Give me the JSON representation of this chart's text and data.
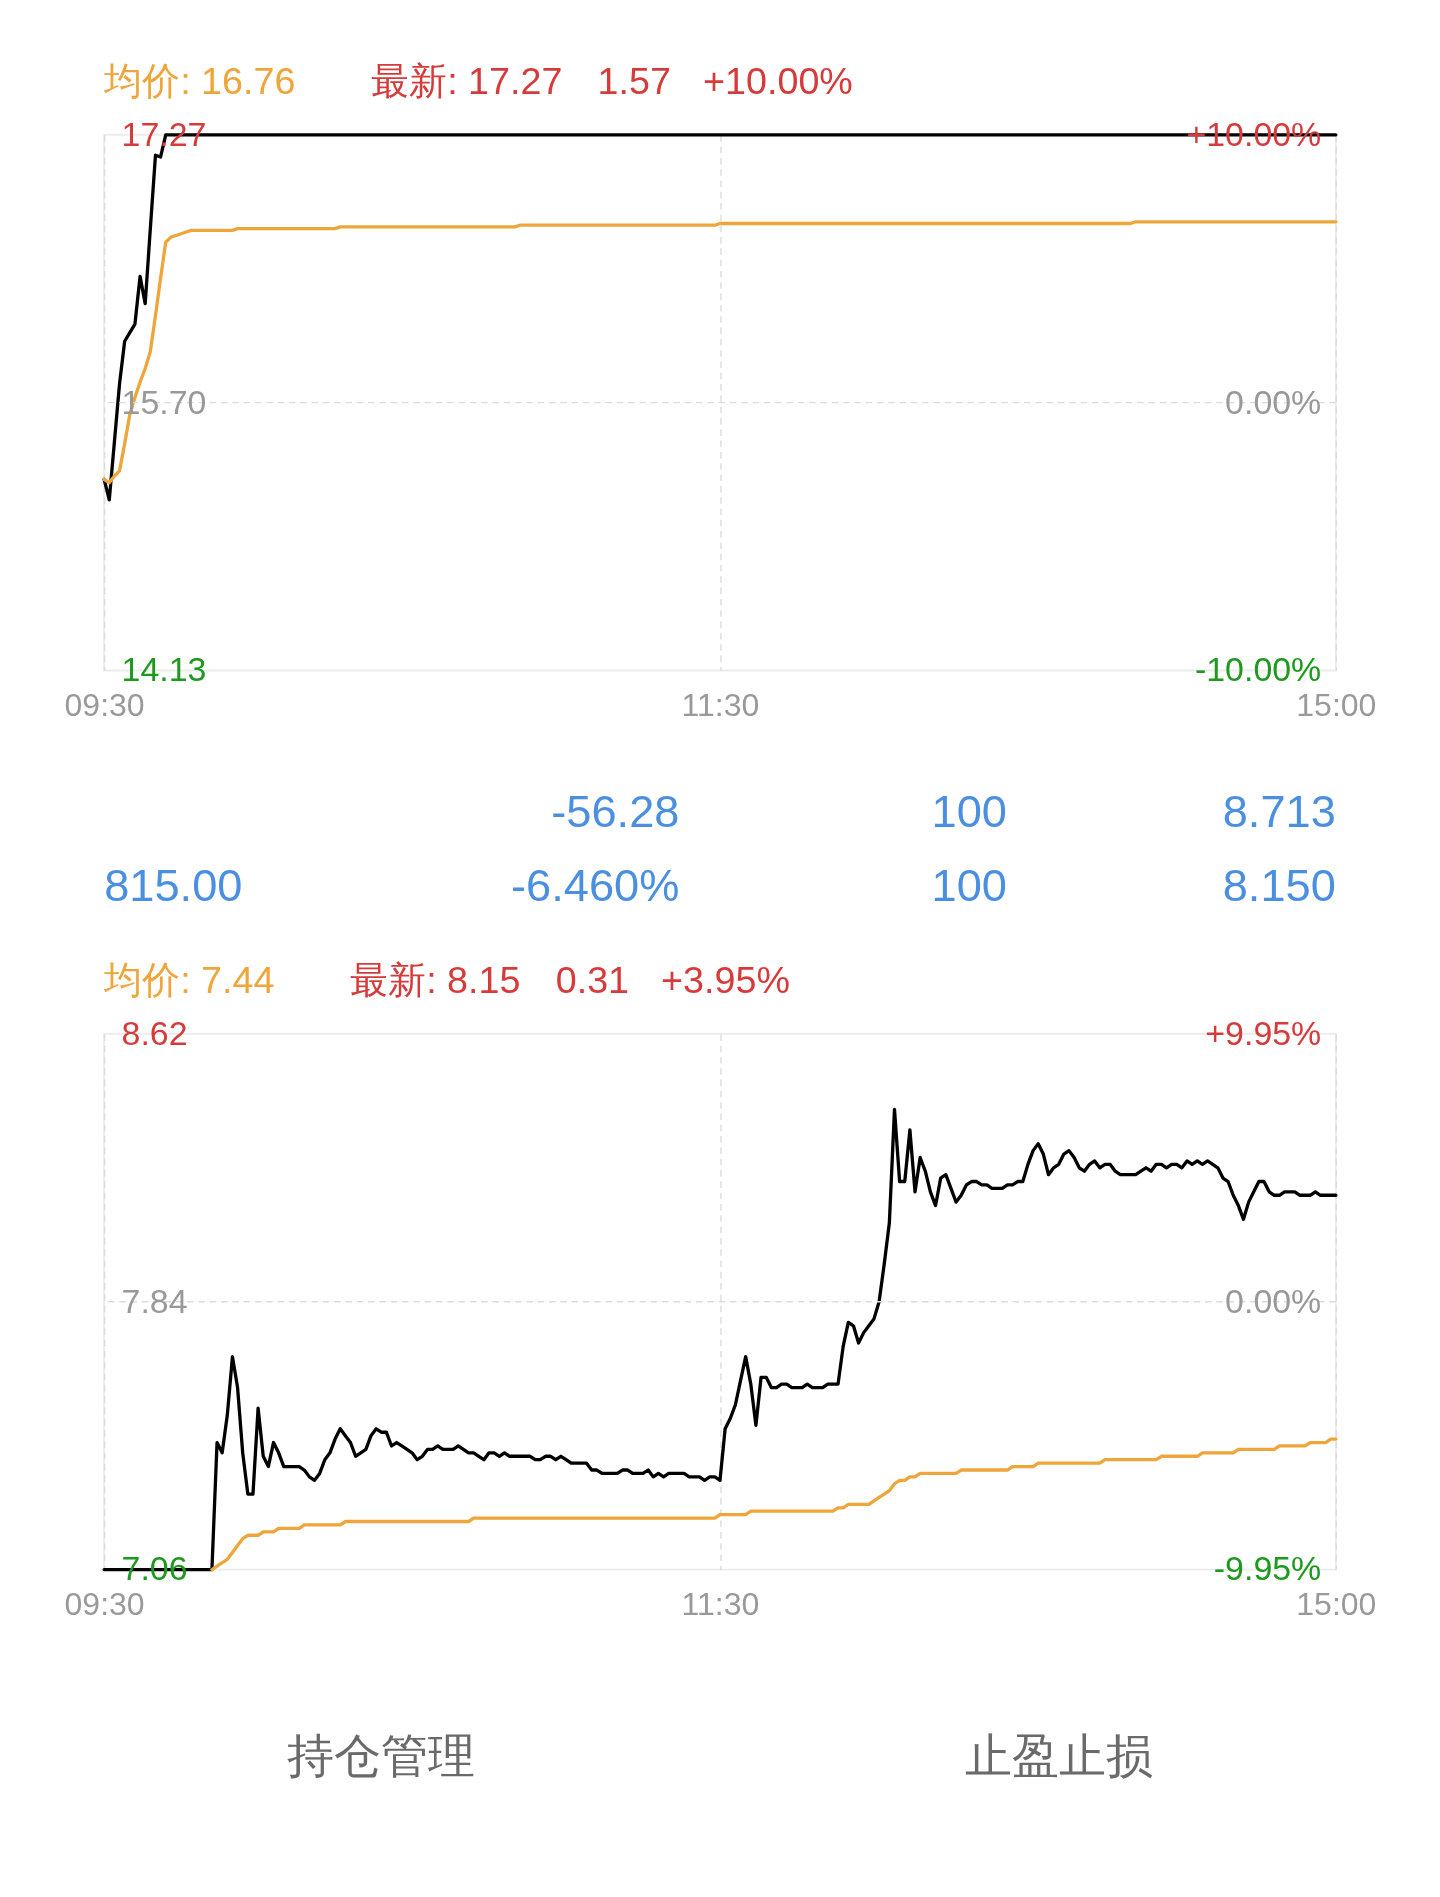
{
  "chart_data": [
    {
      "type": "line",
      "annotations": [
        "均价: 16.76",
        "最新: 17.27",
        "1.57",
        "+10.00%"
      ],
      "categories": [
        "09:30",
        null,
        null,
        null,
        null,
        null,
        null,
        null,
        null,
        null,
        null,
        null,
        null,
        null,
        null,
        null,
        null,
        null,
        null,
        null,
        null,
        null,
        null,
        null,
        null,
        null,
        null,
        null,
        null,
        null,
        null,
        null,
        null,
        null,
        null,
        null,
        null,
        null,
        null,
        null,
        null,
        null,
        null,
        null,
        null,
        null,
        null,
        null,
        null,
        null,
        null,
        null,
        null,
        null,
        null,
        null,
        null,
        null,
        null,
        null,
        null,
        null,
        null,
        null,
        null,
        null,
        null,
        null,
        null,
        null,
        null,
        null,
        null,
        null,
        null,
        null,
        null,
        null,
        null,
        null,
        null,
        null,
        null,
        null,
        null,
        null,
        null,
        null,
        null,
        null,
        null,
        null,
        null,
        null,
        null,
        null,
        null,
        null,
        null,
        null,
        null,
        null,
        null,
        null,
        null,
        null,
        null,
        null,
        null,
        null,
        null,
        null,
        null,
        null,
        null,
        null,
        null,
        null,
        null,
        null,
        "11:30",
        null,
        null,
        null,
        null,
        null,
        null,
        null,
        null,
        null,
        null,
        null,
        null,
        null,
        null,
        null,
        null,
        null,
        null,
        null,
        null,
        null,
        null,
        null,
        null,
        null,
        null,
        null,
        null,
        null,
        null,
        null,
        null,
        null,
        null,
        null,
        null,
        null,
        null,
        null,
        null,
        null,
        null,
        null,
        null,
        null,
        null,
        null,
        null,
        null,
        null,
        null,
        null,
        null,
        null,
        null,
        null,
        null,
        null,
        null,
        null,
        null,
        null,
        null,
        null,
        null,
        null,
        null,
        null,
        null,
        null,
        null,
        null,
        null,
        null,
        null,
        null,
        null,
        null,
        null,
        null,
        null,
        null,
        null,
        null,
        null,
        null,
        null,
        null,
        null,
        null,
        null,
        null,
        null,
        null,
        null,
        null,
        null,
        null,
        null,
        null,
        null,
        null,
        null,
        null,
        null,
        null,
        null,
        null,
        null,
        null,
        null,
        null,
        null,
        null,
        null,
        null,
        null,
        null,
        null,
        "15:00"
      ],
      "ylim": [
        14.13,
        17.27
      ],
      "yticks": [
        14.13,
        {
          "value": 15.7,
          "label": "15.70"
        },
        17.27
      ],
      "y2lim": [
        -10,
        10
      ],
      "y2ticks": [
        {
          "value": -10,
          "label": "-10.00%"
        },
        {
          "value": 0,
          "label": "0.00%"
        },
        {
          "value": 10,
          "label": "+10.00%"
        }
      ],
      "grid": "x",
      "ref_lines": [
        {
          "axis": "y2",
          "value": 0,
          "color": "#dcdcdc",
          "line_style": "dashed"
        }
      ],
      "series": [
        {
          "color": "#000000",
          "values": [
            15.25,
            15.13,
            15.47,
            15.81,
            16.06,
            16.11,
            16.16,
            16.44,
            16.28,
            16.72,
            17.15,
            17.14,
            17.27,
            17.27,
            17.27,
            17.27,
            17.27,
            17.27,
            17.27,
            17.27,
            17.27,
            17.27,
            17.27,
            17.27,
            17.27,
            17.27,
            17.27,
            17.27,
            17.27,
            17.27,
            17.27,
            17.27,
            17.27,
            17.27,
            17.27,
            17.27,
            17.27,
            17.27,
            17.27,
            17.27,
            17.27,
            17.27,
            17.27,
            17.27,
            17.27,
            17.27,
            17.27,
            17.27,
            17.27,
            17.27,
            17.27,
            17.27,
            17.27,
            17.27,
            17.27,
            17.27,
            17.27,
            17.27,
            17.27,
            17.27,
            17.27,
            17.27,
            17.27,
            17.27,
            17.27,
            17.27,
            17.27,
            17.27,
            17.27,
            17.27,
            17.27,
            17.27,
            17.27,
            17.27,
            17.27,
            17.27,
            17.27,
            17.27,
            17.27,
            17.27,
            17.27,
            17.27,
            17.27,
            17.27,
            17.27,
            17.27,
            17.27,
            17.27,
            17.27,
            17.27,
            17.27,
            17.27,
            17.27,
            17.27,
            17.27,
            17.27,
            17.27,
            17.27,
            17.27,
            17.27,
            17.27,
            17.27,
            17.27,
            17.27,
            17.27,
            17.27,
            17.27,
            17.27,
            17.27,
            17.27,
            17.27,
            17.27,
            17.27,
            17.27,
            17.27,
            17.27,
            17.27,
            17.27,
            17.27,
            17.27,
            17.27,
            17.27,
            17.27,
            17.27,
            17.27,
            17.27,
            17.27,
            17.27,
            17.27,
            17.27,
            17.27,
            17.27,
            17.27,
            17.27,
            17.27,
            17.27,
            17.27,
            17.27,
            17.27,
            17.27,
            17.27,
            17.27,
            17.27,
            17.27,
            17.27,
            17.27,
            17.27,
            17.27,
            17.27,
            17.27,
            17.27,
            17.27,
            17.27,
            17.27,
            17.27,
            17.27,
            17.27,
            17.27,
            17.27,
            17.27,
            17.27,
            17.27,
            17.27,
            17.27,
            17.27,
            17.27,
            17.27,
            17.27,
            17.27,
            17.27,
            17.27,
            17.27,
            17.27,
            17.27,
            17.27,
            17.27,
            17.27,
            17.27,
            17.27,
            17.27,
            17.27,
            17.27,
            17.27,
            17.27,
            17.27,
            17.27,
            17.27,
            17.27,
            17.27,
            17.27,
            17.27,
            17.27,
            17.27,
            17.27,
            17.27,
            17.27,
            17.27,
            17.27,
            17.27,
            17.27,
            17.27,
            17.27,
            17.27,
            17.27,
            17.27,
            17.27,
            17.27,
            17.27,
            17.27,
            17.27,
            17.27,
            17.27,
            17.27,
            17.27,
            17.27,
            17.27,
            17.27,
            17.27,
            17.27,
            17.27,
            17.27,
            17.27,
            17.27,
            17.27,
            17.27,
            17.27,
            17.27,
            17.27,
            17.27,
            17.27,
            17.27,
            17.27,
            17.27,
            17.27,
            17.27,
            17.27,
            17.27,
            17.27,
            17.27,
            17.27,
            17.27
          ]
        },
        {
          "color": "#eea53a",
          "values": [
            15.25,
            15.23,
            15.27,
            15.3,
            15.46,
            15.63,
            15.73,
            15.82,
            15.9,
            16.0,
            16.21,
            16.43,
            16.64,
            16.67,
            16.68,
            16.69,
            16.7,
            16.71,
            16.71,
            16.71,
            16.71,
            16.71,
            16.71,
            16.71,
            16.71,
            16.71,
            16.72,
            16.72,
            16.72,
            16.72,
            16.72,
            16.72,
            16.72,
            16.72,
            16.72,
            16.72,
            16.72,
            16.72,
            16.72,
            16.72,
            16.72,
            16.72,
            16.72,
            16.72,
            16.72,
            16.72,
            16.73,
            16.73,
            16.73,
            16.73,
            16.73,
            16.73,
            16.73,
            16.73,
            16.73,
            16.73,
            16.73,
            16.73,
            16.73,
            16.73,
            16.73,
            16.73,
            16.73,
            16.73,
            16.73,
            16.73,
            16.73,
            16.73,
            16.73,
            16.73,
            16.73,
            16.73,
            16.73,
            16.73,
            16.73,
            16.73,
            16.73,
            16.73,
            16.73,
            16.73,
            16.73,
            16.74,
            16.74,
            16.74,
            16.74,
            16.74,
            16.74,
            16.74,
            16.74,
            16.74,
            16.74,
            16.74,
            16.74,
            16.74,
            16.74,
            16.74,
            16.74,
            16.74,
            16.74,
            16.74,
            16.74,
            16.74,
            16.74,
            16.74,
            16.74,
            16.74,
            16.74,
            16.74,
            16.74,
            16.74,
            16.74,
            16.74,
            16.74,
            16.74,
            16.74,
            16.74,
            16.74,
            16.74,
            16.74,
            16.74,
            16.75,
            16.75,
            16.75,
            16.75,
            16.75,
            16.75,
            16.75,
            16.75,
            16.75,
            16.75,
            16.75,
            16.75,
            16.75,
            16.75,
            16.75,
            16.75,
            16.75,
            16.75,
            16.75,
            16.75,
            16.75,
            16.75,
            16.75,
            16.75,
            16.75,
            16.75,
            16.75,
            16.75,
            16.75,
            16.75,
            16.75,
            16.75,
            16.75,
            16.75,
            16.75,
            16.75,
            16.75,
            16.75,
            16.75,
            16.75,
            16.75,
            16.75,
            16.75,
            16.75,
            16.75,
            16.75,
            16.75,
            16.75,
            16.75,
            16.75,
            16.75,
            16.75,
            16.75,
            16.75,
            16.75,
            16.75,
            16.75,
            16.75,
            16.75,
            16.75,
            16.75,
            16.75,
            16.75,
            16.75,
            16.75,
            16.75,
            16.75,
            16.75,
            16.75,
            16.75,
            16.75,
            16.75,
            16.75,
            16.75,
            16.75,
            16.75,
            16.75,
            16.75,
            16.75,
            16.75,
            16.75,
            16.76,
            16.76,
            16.76,
            16.76,
            16.76,
            16.76,
            16.76,
            16.76,
            16.76,
            16.76,
            16.76,
            16.76,
            16.76,
            16.76,
            16.76,
            16.76,
            16.76,
            16.76,
            16.76,
            16.76,
            16.76,
            16.76,
            16.76,
            16.76,
            16.76,
            16.76,
            16.76,
            16.76,
            16.76,
            16.76,
            16.76,
            16.76,
            16.76,
            16.76,
            16.76,
            16.76,
            16.76,
            16.76,
            16.76,
            16.76
          ]
        }
      ]
    },
    {
      "type": "other",
      "annotations": [
        "-56.28",
        "100",
        "8.713",
        "815.00",
        "-6.460%",
        "100",
        "8.150"
      ]
    },
    {
      "type": "line",
      "annotations": [
        "均价: 7.44",
        "最新: 8.15",
        "0.31",
        "+3.95%"
      ],
      "categories": [
        "09:30",
        null,
        null,
        null,
        null,
        null,
        null,
        null,
        null,
        null,
        null,
        null,
        null,
        null,
        null,
        null,
        null,
        null,
        null,
        null,
        null,
        null,
        null,
        null,
        null,
        null,
        null,
        null,
        null,
        null,
        null,
        null,
        null,
        null,
        null,
        null,
        null,
        null,
        null,
        null,
        null,
        null,
        null,
        null,
        null,
        null,
        null,
        null,
        null,
        null,
        null,
        null,
        null,
        null,
        null,
        null,
        null,
        null,
        null,
        null,
        null,
        null,
        null,
        null,
        null,
        null,
        null,
        null,
        null,
        null,
        null,
        null,
        null,
        null,
        null,
        null,
        null,
        null,
        null,
        null,
        null,
        null,
        null,
        null,
        null,
        null,
        null,
        null,
        null,
        null,
        null,
        null,
        null,
        null,
        null,
        null,
        null,
        null,
        null,
        null,
        null,
        null,
        null,
        null,
        null,
        null,
        null,
        null,
        null,
        null,
        null,
        null,
        null,
        null,
        null,
        null,
        null,
        null,
        null,
        null,
        "11:30",
        null,
        null,
        null,
        null,
        null,
        null,
        null,
        null,
        null,
        null,
        null,
        null,
        null,
        null,
        null,
        null,
        null,
        null,
        null,
        null,
        null,
        null,
        null,
        null,
        null,
        null,
        null,
        null,
        null,
        null,
        null,
        null,
        null,
        null,
        null,
        null,
        null,
        null,
        null,
        null,
        null,
        null,
        null,
        null,
        null,
        null,
        null,
        null,
        null,
        null,
        null,
        null,
        null,
        null,
        null,
        null,
        null,
        null,
        null,
        null,
        null,
        null,
        null,
        null,
        null,
        null,
        null,
        null,
        null,
        null,
        null,
        null,
        null,
        null,
        null,
        null,
        null,
        null,
        null,
        null,
        null,
        null,
        null,
        null,
        null,
        null,
        null,
        null,
        null,
        null,
        null,
        null,
        null,
        null,
        null,
        null,
        null,
        null,
        null,
        null,
        null,
        null,
        null,
        null,
        null,
        null,
        null,
        null,
        null,
        null,
        null,
        null,
        null,
        null,
        null,
        null,
        null,
        null,
        null,
        "15:00"
      ],
      "ylim": [
        7.06,
        8.62
      ],
      "yticks": [
        7.06,
        7.84,
        8.62
      ],
      "y2lim": [
        -9.95,
        9.95
      ],
      "y2ticks": [
        {
          "value": -9.95,
          "label": "-9.95%"
        },
        {
          "value": 0,
          "label": "0.00%"
        },
        {
          "value": 9.95,
          "label": "+9.95%"
        }
      ],
      "grid": "x",
      "ref_lines": [
        {
          "axis": "y2",
          "value": 0,
          "color": "#dcdcdc",
          "line_style": "dashed"
        }
      ],
      "series": [
        {
          "color": "#000000",
          "values": [
            7.06,
            7.06,
            7.06,
            7.06,
            7.06,
            7.06,
            7.06,
            7.06,
            7.06,
            7.06,
            7.06,
            7.06,
            7.06,
            7.06,
            7.06,
            7.06,
            7.06,
            7.06,
            7.06,
            7.06,
            7.06,
            7.06,
            7.43,
            7.4,
            7.51,
            7.68,
            7.59,
            7.4,
            7.28,
            7.28,
            7.53,
            7.39,
            7.36,
            7.43,
            7.4,
            7.36,
            7.36,
            7.36,
            7.36,
            7.35,
            7.33,
            7.32,
            7.34,
            7.38,
            7.4,
            7.44,
            7.47,
            7.45,
            7.43,
            7.39,
            7.4,
            7.41,
            7.45,
            7.47,
            7.46,
            7.46,
            7.42,
            7.43,
            7.42,
            7.41,
            7.4,
            7.38,
            7.39,
            7.41,
            7.41,
            7.42,
            7.41,
            7.41,
            7.41,
            7.42,
            7.41,
            7.4,
            7.4,
            7.39,
            7.38,
            7.4,
            7.4,
            7.39,
            7.4,
            7.39,
            7.39,
            7.39,
            7.39,
            7.39,
            7.38,
            7.38,
            7.39,
            7.39,
            7.38,
            7.39,
            7.38,
            7.37,
            7.37,
            7.37,
            7.37,
            7.35,
            7.35,
            7.34,
            7.34,
            7.34,
            7.34,
            7.35,
            7.35,
            7.34,
            7.34,
            7.34,
            7.35,
            7.33,
            7.34,
            7.33,
            7.34,
            7.34,
            7.34,
            7.34,
            7.33,
            7.33,
            7.33,
            7.32,
            7.33,
            7.33,
            7.32,
            7.47,
            7.5,
            7.54,
            7.61,
            7.68,
            7.6,
            7.48,
            7.62,
            7.62,
            7.59,
            7.59,
            7.6,
            7.6,
            7.59,
            7.59,
            7.59,
            7.6,
            7.59,
            7.59,
            7.59,
            7.6,
            7.6,
            7.6,
            7.71,
            7.78,
            7.77,
            7.72,
            7.75,
            7.77,
            7.79,
            7.84,
            7.95,
            8.07,
            8.4,
            8.19,
            8.19,
            8.34,
            8.16,
            8.26,
            8.22,
            8.16,
            8.12,
            8.2,
            8.21,
            8.17,
            8.13,
            8.15,
            8.18,
            8.19,
            8.19,
            8.18,
            8.18,
            8.17,
            8.17,
            8.17,
            8.18,
            8.18,
            8.19,
            8.19,
            8.24,
            8.28,
            8.3,
            8.27,
            8.21,
            8.23,
            8.24,
            8.27,
            8.28,
            8.26,
            8.23,
            8.22,
            8.24,
            8.25,
            8.23,
            8.24,
            8.24,
            8.22,
            8.21,
            8.21,
            8.21,
            8.21,
            8.22,
            8.23,
            8.22,
            8.24,
            8.24,
            8.23,
            8.24,
            8.24,
            8.23,
            8.25,
            8.24,
            8.25,
            8.24,
            8.25,
            8.24,
            8.23,
            8.2,
            8.19,
            8.15,
            8.12,
            8.08,
            8.13,
            8.16,
            8.19,
            8.19,
            8.16,
            8.15,
            8.15,
            8.16,
            8.16,
            8.16,
            8.15,
            8.15,
            8.15,
            8.16,
            8.15,
            8.15,
            8.15,
            8.15
          ]
        },
        {
          "color": "#eea53a",
          "values": [
            null,
            null,
            null,
            null,
            null,
            null,
            null,
            null,
            null,
            null,
            null,
            null,
            null,
            null,
            null,
            null,
            null,
            null,
            null,
            null,
            null,
            7.06,
            7.07,
            7.08,
            7.09,
            7.11,
            7.13,
            7.15,
            7.16,
            7.16,
            7.16,
            7.17,
            7.17,
            7.17,
            7.18,
            7.18,
            7.18,
            7.18,
            7.18,
            7.19,
            7.19,
            7.19,
            7.19,
            7.19,
            7.19,
            7.19,
            7.19,
            7.2,
            7.2,
            7.2,
            7.2,
            7.2,
            7.2,
            7.2,
            7.2,
            7.2,
            7.2,
            7.2,
            7.2,
            7.2,
            7.2,
            7.2,
            7.2,
            7.2,
            7.2,
            7.2,
            7.2,
            7.2,
            7.2,
            7.2,
            7.2,
            7.2,
            7.21,
            7.21,
            7.21,
            7.21,
            7.21,
            7.21,
            7.21,
            7.21,
            7.21,
            7.21,
            7.21,
            7.21,
            7.21,
            7.21,
            7.21,
            7.21,
            7.21,
            7.21,
            7.21,
            7.21,
            7.21,
            7.21,
            7.21,
            7.21,
            7.21,
            7.21,
            7.21,
            7.21,
            7.21,
            7.21,
            7.21,
            7.21,
            7.21,
            7.21,
            7.21,
            7.21,
            7.21,
            7.21,
            7.21,
            7.21,
            7.21,
            7.21,
            7.21,
            7.21,
            7.21,
            7.21,
            7.21,
            7.21,
            7.22,
            7.22,
            7.22,
            7.22,
            7.22,
            7.22,
            7.23,
            7.23,
            7.23,
            7.23,
            7.23,
            7.23,
            7.23,
            7.23,
            7.23,
            7.23,
            7.23,
            7.23,
            7.23,
            7.23,
            7.23,
            7.23,
            7.23,
            7.24,
            7.24,
            7.25,
            7.25,
            7.25,
            7.25,
            7.25,
            7.26,
            7.27,
            7.28,
            7.29,
            7.31,
            7.32,
            7.32,
            7.33,
            7.33,
            7.34,
            7.34,
            7.34,
            7.34,
            7.34,
            7.34,
            7.34,
            7.34,
            7.35,
            7.35,
            7.35,
            7.35,
            7.35,
            7.35,
            7.35,
            7.35,
            7.35,
            7.35,
            7.36,
            7.36,
            7.36,
            7.36,
            7.36,
            7.37,
            7.37,
            7.37,
            7.37,
            7.37,
            7.37,
            7.37,
            7.37,
            7.37,
            7.37,
            7.37,
            7.37,
            7.37,
            7.38,
            7.38,
            7.38,
            7.38,
            7.38,
            7.38,
            7.38,
            7.38,
            7.38,
            7.38,
            7.38,
            7.39,
            7.39,
            7.39,
            7.39,
            7.39,
            7.39,
            7.39,
            7.39,
            7.4,
            7.4,
            7.4,
            7.4,
            7.4,
            7.4,
            7.4,
            7.41,
            7.41,
            7.41,
            7.41,
            7.41,
            7.41,
            7.41,
            7.41,
            7.42,
            7.42,
            7.42,
            7.42,
            7.42,
            7.42,
            7.43,
            7.43,
            7.43,
            7.43,
            7.44,
            7.44
          ]
        }
      ]
    },
    {
      "type": "other",
      "annotations": [
        "持仓管理",
        "止盈止损"
      ]
    }
  ]
}
